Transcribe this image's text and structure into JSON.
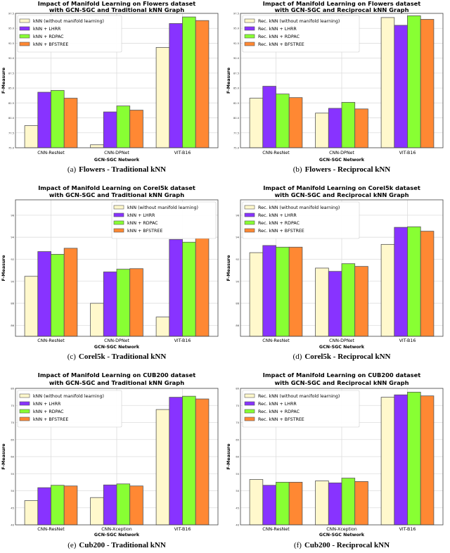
{
  "colors": {
    "baseline": "#fff8cc",
    "lhrr": "#8833ff",
    "rdpac": "#88ff33",
    "bfstree": "#ff8833",
    "edge": "#555555",
    "grid": "#dddddd"
  },
  "chart_data": [
    {
      "type": "bar",
      "title": "Impact of Manifold Learning on Flowers dataset",
      "subtitle": "with GCN-SGC and Traditional kNN Graph",
      "caption_id": "(a)",
      "caption": "Flowers - Traditional kNN",
      "xlabel": "GCN-SGC Network",
      "ylabel": "F-Measure",
      "ylim": [
        75,
        97.5
      ],
      "yticks": [
        "75.0",
        "77.5",
        "80.0",
        "82.5",
        "85.0",
        "87.5",
        "90.0",
        "92.5",
        "95.0",
        "97.5"
      ],
      "grid": true,
      "legend": "top-left",
      "categories": [
        "CNN-ResNet",
        "CNN-DPNet",
        "VIT-B16"
      ],
      "series": [
        {
          "name": "kNN (without manifold learning)",
          "values": [
            78.7,
            75.5,
            91.8
          ]
        },
        {
          "name": "kNN + LHRR",
          "values": [
            84.3,
            81.0,
            95.8
          ]
        },
        {
          "name": "kNN + RDPAC",
          "values": [
            84.6,
            82.0,
            96.9
          ]
        },
        {
          "name": "kNN + BFSTREE",
          "values": [
            83.3,
            81.3,
            96.3
          ]
        }
      ]
    },
    {
      "type": "bar",
      "title": "Impact of Manifold Learning on Flowers dataset",
      "subtitle": "with GCN-SGC and Reciprocal kNN Graph",
      "caption_id": "(b)",
      "caption": "Flowers - Reciprocal kNN",
      "xlabel": "GCN-SGC Network",
      "ylabel": "F-Measure",
      "ylim": [
        75,
        97.5
      ],
      "yticks": [
        "75.0",
        "77.5",
        "80.0",
        "82.5",
        "85.0",
        "87.5",
        "90.0",
        "92.5",
        "95.0",
        "97.5"
      ],
      "grid": true,
      "legend": "top-left",
      "categories": [
        "CNN-ResNet",
        "CNN-DPNet",
        "VIT-B16"
      ],
      "series": [
        {
          "name": "Rec. kNN (without manifold learning)",
          "values": [
            83.3,
            80.8,
            96.8
          ]
        },
        {
          "name": "Rec. kNN + LHRR",
          "values": [
            85.3,
            81.6,
            95.5
          ]
        },
        {
          "name": "Rec. kNN + RDPAC",
          "values": [
            84.0,
            82.6,
            97.1
          ]
        },
        {
          "name": "Rec. kNN + BFSTREE",
          "values": [
            83.4,
            81.5,
            96.5
          ]
        }
      ]
    },
    {
      "type": "bar",
      "title": "Impact of Manifold Learning on Corel5k dataset",
      "subtitle": "with GCN-SGC and Traditional kNN Graph",
      "caption_id": "(c)",
      "caption": "Corel5k - Traditional kNN",
      "xlabel": "GCN-SGC Network",
      "ylabel": "F-Measure",
      "ylim": [
        85,
        97.4
      ],
      "yticks": [
        "86",
        "88",
        "90",
        "92",
        "94",
        "96"
      ],
      "grid": true,
      "legend": "top-right",
      "categories": [
        "CNN-ResNet",
        "CNN-DPNet",
        "VIT-B16"
      ],
      "series": [
        {
          "name": "kNN (without manifold learning)",
          "values": [
            90.45,
            88.0,
            86.75
          ]
        },
        {
          "name": "kNN + LHRR",
          "values": [
            92.7,
            90.85,
            93.8
          ]
        },
        {
          "name": "kNN + RDPAC",
          "values": [
            92.45,
            91.1,
            93.55
          ]
        },
        {
          "name": "kNN + BFSTREE",
          "values": [
            93.0,
            91.15,
            93.9
          ]
        }
      ]
    },
    {
      "type": "bar",
      "title": "Impact of Manifold Learning on Corel5k dataset",
      "subtitle": "with GCN-SGC and Reciprocal kNN Graph",
      "caption_id": "(d)",
      "caption": "Corel5k - Reciprocal kNN",
      "xlabel": "GCN-SGC Network",
      "ylabel": "F-Measure",
      "ylim": [
        85,
        97.4
      ],
      "yticks": [
        "86",
        "88",
        "90",
        "92",
        "94",
        "96"
      ],
      "grid": true,
      "legend": "top-left",
      "categories": [
        "CNN-ResNet",
        "CNN-DPNet",
        "VIT-B16"
      ],
      "series": [
        {
          "name": "Rec. kNN (without manifold learning)",
          "values": [
            92.6,
            91.2,
            93.35
          ]
        },
        {
          "name": "Rec. kNN + LHRR",
          "values": [
            93.25,
            90.9,
            94.9
          ]
        },
        {
          "name": "Rec. kNN + RDPAC",
          "values": [
            93.1,
            91.6,
            94.95
          ]
        },
        {
          "name": "Rec. kNN + BFSTREE",
          "values": [
            93.1,
            91.35,
            94.55
          ]
        }
      ]
    },
    {
      "type": "bar",
      "title": "Impact of Manifold Learning on CUB200 dataset",
      "subtitle": "with GCN-SGC and Traditional kNN Graph",
      "caption_id": "(e)",
      "caption": "Cub200 - Traditional kNN",
      "xlabel": "GCN-SGC Network",
      "ylabel": "F-Measure",
      "ylim": [
        40,
        80
      ],
      "yticks": [
        "40",
        "45",
        "50",
        "55",
        "60",
        "65",
        "70",
        "75",
        "80"
      ],
      "grid": true,
      "legend": "top-left",
      "categories": [
        "CNN-ResNet",
        "CNN-Xception",
        "VIT-B16"
      ],
      "series": [
        {
          "name": "kNN (without manifold learning)",
          "values": [
            47.1,
            48.0,
            73.8
          ]
        },
        {
          "name": "kNN + LHRR",
          "values": [
            50.9,
            51.7,
            77.4
          ]
        },
        {
          "name": "kNN + RDPAC",
          "values": [
            51.6,
            52.0,
            77.7
          ]
        },
        {
          "name": "kNN + BFSTREE",
          "values": [
            51.4,
            51.4,
            76.9
          ]
        }
      ]
    },
    {
      "type": "bar",
      "title": "Impact of Manifold Learning on CUB200 dataset",
      "subtitle": "with GCN-SGC and Reciprocal kNN Graph",
      "caption_id": "(f)",
      "caption": "Cub200 - Reciprocal kNN",
      "xlabel": "GCN-SGC Network",
      "ylabel": "F-Measure",
      "ylim": [
        40,
        80
      ],
      "yticks": [
        "40",
        "45",
        "50",
        "55",
        "60",
        "65",
        "70",
        "75",
        "80"
      ],
      "grid": true,
      "legend": "top-left",
      "categories": [
        "CNN-ResNet",
        "CNN-Xception",
        "VIT-B16"
      ],
      "series": [
        {
          "name": "Rec. kNN (without manifold learning)",
          "values": [
            53.3,
            52.9,
            77.4
          ]
        },
        {
          "name": "Rec. kNN + LHRR",
          "values": [
            51.6,
            52.3,
            78.1
          ]
        },
        {
          "name": "Rec. kNN + RDPAC",
          "values": [
            52.5,
            53.7,
            78.9
          ]
        },
        {
          "name": "Rec. kNN + BFSTREE",
          "values": [
            52.5,
            52.7,
            77.8
          ]
        }
      ]
    }
  ]
}
